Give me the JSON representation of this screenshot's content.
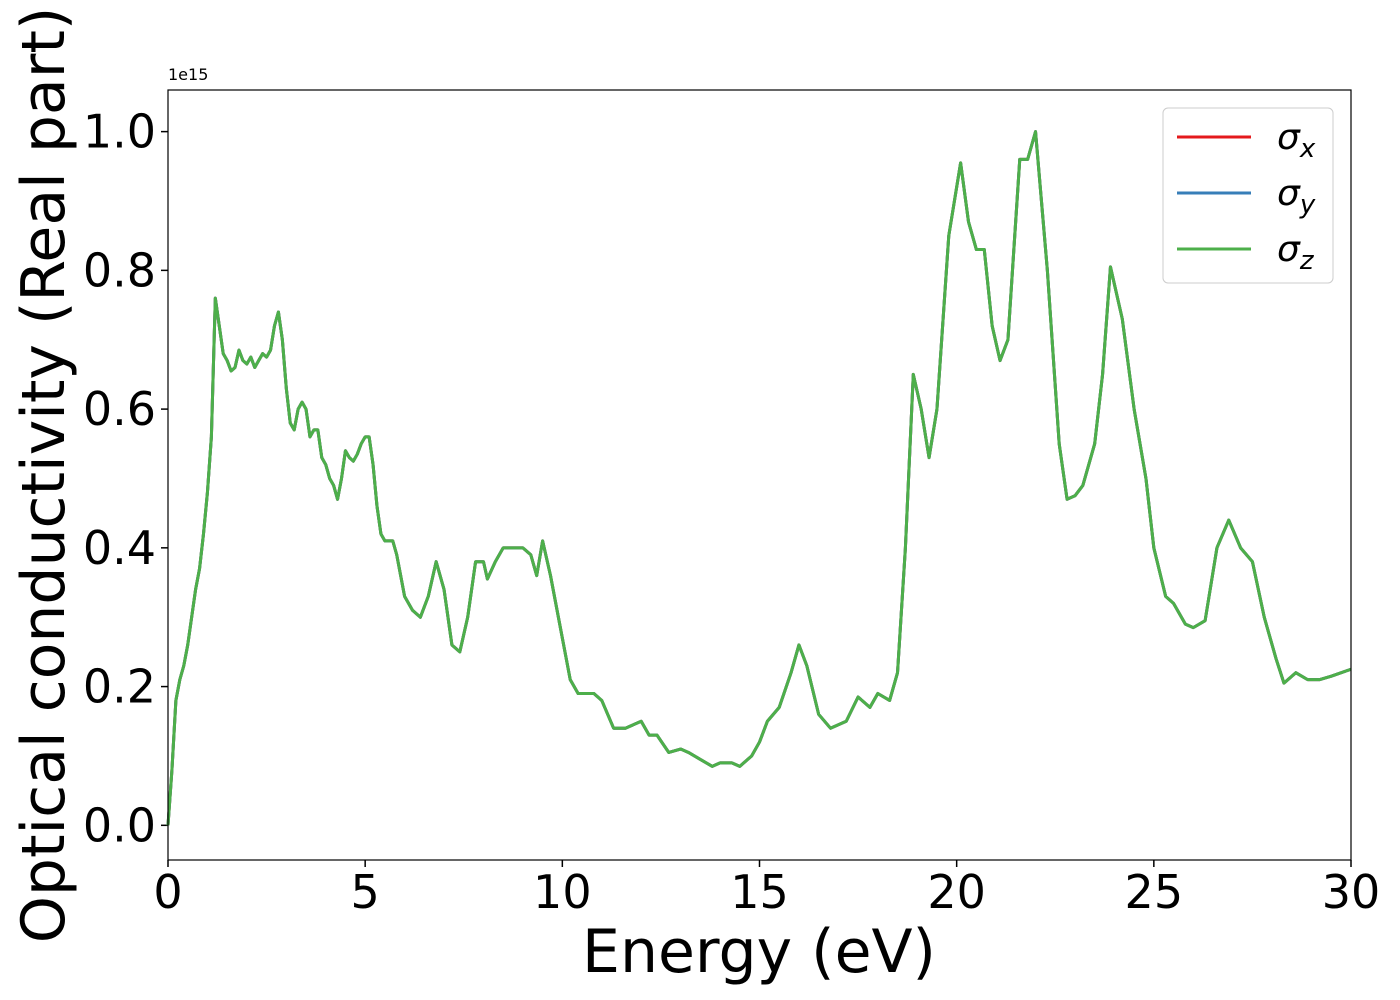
{
  "chart_data": {
    "type": "line",
    "xlabel": "Energy (eV)",
    "ylabel": "Optical conductivity (Real part)",
    "y_offset_label": "1e15",
    "xlim": [
      0,
      30
    ],
    "ylim": [
      -0.05,
      1.06
    ],
    "xticks": [
      0,
      5,
      10,
      15,
      20,
      25,
      30
    ],
    "yticks": [
      {
        "value": 0,
        "label": "0.0"
      },
      0.2,
      0.4,
      0.6,
      0.8,
      {
        "value": 1,
        "label": "1.0"
      }
    ],
    "legend": "upper right",
    "x": [
      0,
      0.1,
      0.2,
      0.3,
      0.4,
      0.5,
      0.6,
      0.7,
      0.8,
      0.9,
      1.0,
      1.1,
      1.2,
      1.3,
      1.4,
      1.5,
      1.6,
      1.7,
      1.8,
      1.9,
      2.0,
      2.1,
      2.2,
      2.3,
      2.4,
      2.5,
      2.6,
      2.7,
      2.8,
      2.9,
      3.0,
      3.1,
      3.2,
      3.3,
      3.4,
      3.5,
      3.6,
      3.7,
      3.8,
      3.9,
      4.0,
      4.1,
      4.2,
      4.3,
      4.4,
      4.5,
      4.6,
      4.7,
      4.8,
      4.9,
      5.0,
      5.1,
      5.2,
      5.3,
      5.4,
      5.5,
      5.6,
      5.7,
      5.8,
      5.9,
      6.0,
      6.2,
      6.4,
      6.6,
      6.8,
      7.0,
      7.2,
      7.4,
      7.6,
      7.8,
      8.0,
      8.1,
      8.3,
      8.5,
      8.8,
      9.0,
      9.2,
      9.35,
      9.5,
      9.7,
      10.0,
      10.2,
      10.4,
      10.6,
      10.8,
      11.0,
      11.3,
      11.6,
      11.8,
      12.0,
      12.2,
      12.4,
      12.7,
      13.0,
      13.2,
      13.5,
      13.8,
      14.0,
      14.3,
      14.5,
      14.8,
      15.0,
      15.2,
      15.5,
      15.8,
      16.0,
      16.2,
      16.5,
      16.8,
      17.2,
      17.5,
      17.8,
      18.0,
      18.3,
      18.5,
      18.7,
      18.9,
      19.1,
      19.3,
      19.5,
      19.8,
      20.1,
      20.3,
      20.5,
      20.7,
      20.9,
      21.1,
      21.3,
      21.6,
      21.8,
      22.0,
      22.3,
      22.6,
      22.8,
      23.0,
      23.2,
      23.5,
      23.7,
      23.9,
      24.2,
      24.5,
      24.8,
      25.0,
      25.3,
      25.5,
      25.8,
      26.0,
      26.3,
      26.6,
      26.9,
      27.2,
      27.5,
      27.8,
      28.1,
      28.3,
      28.6,
      28.9,
      29.2,
      29.5,
      30.0
    ],
    "series": [
      {
        "name": "σx",
        "color": "#e41a1c",
        "values": [
          0,
          0.08,
          0.18,
          0.21,
          0.23,
          0.26,
          0.3,
          0.34,
          0.37,
          0.42,
          0.48,
          0.56,
          0.76,
          0.72,
          0.68,
          0.67,
          0.655,
          0.66,
          0.685,
          0.67,
          0.665,
          0.675,
          0.66,
          0.67,
          0.68,
          0.675,
          0.685,
          0.72,
          0.74,
          0.7,
          0.63,
          0.58,
          0.57,
          0.6,
          0.61,
          0.6,
          0.56,
          0.57,
          0.57,
          0.53,
          0.52,
          0.5,
          0.49,
          0.47,
          0.5,
          0.54,
          0.53,
          0.525,
          0.535,
          0.55,
          0.56,
          0.56,
          0.52,
          0.46,
          0.42,
          0.41,
          0.41,
          0.41,
          0.39,
          0.36,
          0.33,
          0.31,
          0.3,
          0.33,
          0.38,
          0.34,
          0.26,
          0.25,
          0.3,
          0.38,
          0.38,
          0.355,
          0.38,
          0.4,
          0.4,
          0.4,
          0.39,
          0.36,
          0.41,
          0.36,
          0.27,
          0.21,
          0.19,
          0.19,
          0.19,
          0.18,
          0.14,
          0.14,
          0.145,
          0.15,
          0.13,
          0.13,
          0.105,
          0.11,
          0.105,
          0.095,
          0.085,
          0.09,
          0.09,
          0.085,
          0.1,
          0.12,
          0.15,
          0.17,
          0.22,
          0.26,
          0.23,
          0.16,
          0.14,
          0.15,
          0.185,
          0.17,
          0.19,
          0.18,
          0.22,
          0.4,
          0.65,
          0.6,
          0.53,
          0.6,
          0.85,
          0.955,
          0.87,
          0.83,
          0.83,
          0.72,
          0.67,
          0.7,
          0.96,
          0.96,
          1.0,
          0.8,
          0.55,
          0.47,
          0.475,
          0.49,
          0.55,
          0.65,
          0.805,
          0.73,
          0.6,
          0.5,
          0.4,
          0.33,
          0.32,
          0.29,
          0.285,
          0.295,
          0.4,
          0.44,
          0.4,
          0.38,
          0.3,
          0.24,
          0.205,
          0.22,
          0.21,
          0.21,
          0.215,
          0.225
        ]
      },
      {
        "name": "σy",
        "color": "#377eb8",
        "values": [
          0,
          0.08,
          0.18,
          0.21,
          0.23,
          0.26,
          0.3,
          0.34,
          0.37,
          0.42,
          0.48,
          0.56,
          0.76,
          0.72,
          0.68,
          0.67,
          0.655,
          0.66,
          0.685,
          0.67,
          0.665,
          0.675,
          0.66,
          0.67,
          0.68,
          0.675,
          0.685,
          0.72,
          0.74,
          0.7,
          0.63,
          0.58,
          0.57,
          0.6,
          0.61,
          0.6,
          0.56,
          0.57,
          0.57,
          0.53,
          0.52,
          0.5,
          0.49,
          0.47,
          0.5,
          0.54,
          0.53,
          0.525,
          0.535,
          0.55,
          0.56,
          0.56,
          0.52,
          0.46,
          0.42,
          0.41,
          0.41,
          0.41,
          0.39,
          0.36,
          0.33,
          0.31,
          0.3,
          0.33,
          0.38,
          0.34,
          0.26,
          0.25,
          0.3,
          0.38,
          0.38,
          0.355,
          0.38,
          0.4,
          0.4,
          0.4,
          0.39,
          0.36,
          0.41,
          0.36,
          0.27,
          0.21,
          0.19,
          0.19,
          0.19,
          0.18,
          0.14,
          0.14,
          0.145,
          0.15,
          0.13,
          0.13,
          0.105,
          0.11,
          0.105,
          0.095,
          0.085,
          0.09,
          0.09,
          0.085,
          0.1,
          0.12,
          0.15,
          0.17,
          0.22,
          0.26,
          0.23,
          0.16,
          0.14,
          0.15,
          0.185,
          0.17,
          0.19,
          0.18,
          0.22,
          0.4,
          0.65,
          0.6,
          0.53,
          0.6,
          0.85,
          0.955,
          0.87,
          0.83,
          0.83,
          0.72,
          0.67,
          0.7,
          0.96,
          0.96,
          1.0,
          0.8,
          0.55,
          0.47,
          0.475,
          0.49,
          0.55,
          0.65,
          0.805,
          0.73,
          0.6,
          0.5,
          0.4,
          0.33,
          0.32,
          0.29,
          0.285,
          0.295,
          0.4,
          0.44,
          0.4,
          0.38,
          0.3,
          0.24,
          0.205,
          0.22,
          0.21,
          0.21,
          0.215,
          0.225
        ]
      },
      {
        "name": "σz",
        "color": "#4daf4a",
        "values": [
          0,
          0.08,
          0.18,
          0.21,
          0.23,
          0.26,
          0.3,
          0.34,
          0.37,
          0.42,
          0.48,
          0.56,
          0.76,
          0.72,
          0.68,
          0.67,
          0.655,
          0.66,
          0.685,
          0.67,
          0.665,
          0.675,
          0.66,
          0.67,
          0.68,
          0.675,
          0.685,
          0.72,
          0.74,
          0.7,
          0.63,
          0.58,
          0.57,
          0.6,
          0.61,
          0.6,
          0.56,
          0.57,
          0.57,
          0.53,
          0.52,
          0.5,
          0.49,
          0.47,
          0.5,
          0.54,
          0.53,
          0.525,
          0.535,
          0.55,
          0.56,
          0.56,
          0.52,
          0.46,
          0.42,
          0.41,
          0.41,
          0.41,
          0.39,
          0.36,
          0.33,
          0.31,
          0.3,
          0.33,
          0.38,
          0.34,
          0.26,
          0.25,
          0.3,
          0.38,
          0.38,
          0.355,
          0.38,
          0.4,
          0.4,
          0.4,
          0.39,
          0.36,
          0.41,
          0.36,
          0.27,
          0.21,
          0.19,
          0.19,
          0.19,
          0.18,
          0.14,
          0.14,
          0.145,
          0.15,
          0.13,
          0.13,
          0.105,
          0.11,
          0.105,
          0.095,
          0.085,
          0.09,
          0.09,
          0.085,
          0.1,
          0.12,
          0.15,
          0.17,
          0.22,
          0.26,
          0.23,
          0.16,
          0.14,
          0.15,
          0.185,
          0.17,
          0.19,
          0.18,
          0.22,
          0.4,
          0.65,
          0.6,
          0.53,
          0.6,
          0.85,
          0.955,
          0.87,
          0.83,
          0.83,
          0.72,
          0.67,
          0.7,
          0.96,
          0.96,
          1.0,
          0.8,
          0.55,
          0.47,
          0.475,
          0.49,
          0.55,
          0.65,
          0.805,
          0.73,
          0.6,
          0.5,
          0.4,
          0.33,
          0.32,
          0.29,
          0.285,
          0.295,
          0.4,
          0.44,
          0.4,
          0.38,
          0.3,
          0.24,
          0.205,
          0.22,
          0.21,
          0.21,
          0.215,
          0.225
        ]
      }
    ]
  }
}
